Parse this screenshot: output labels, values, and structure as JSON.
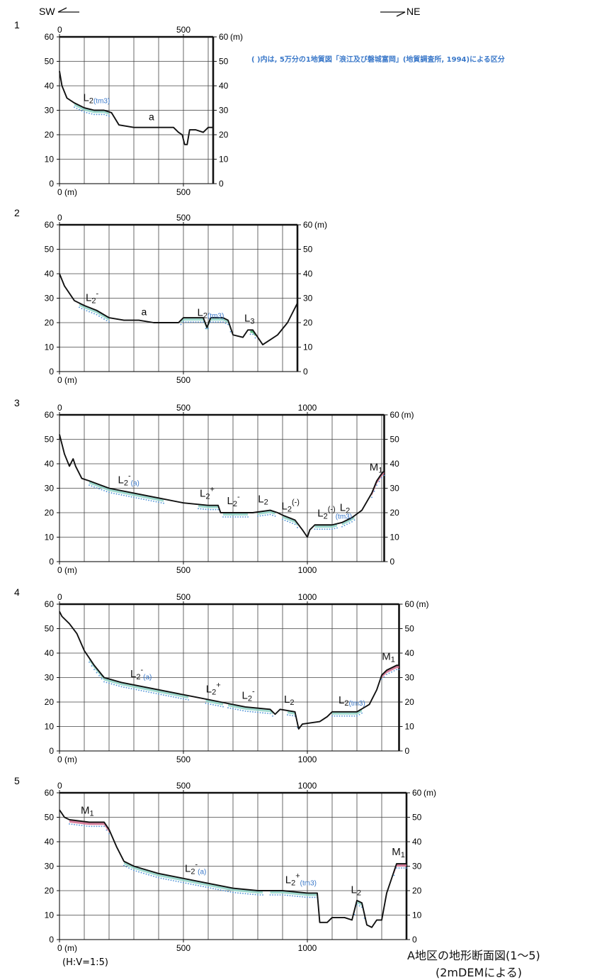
{
  "direction": {
    "left": "SW",
    "right": "NE"
  },
  "note": "( )内は, 5万分の1地質図「浪江及び磐城富岡」(地質調査所, 1994)による区分",
  "axis_unit_m": "(m)",
  "scale_note": "(H:V=1:5)",
  "caption": {
    "title": "A地区の地形断面図(1〜5)",
    "subtitle": "(2mDEMによる)"
  },
  "colors": {
    "profile": "#111111",
    "L2": "#8fd3c7",
    "L3": "#3aa46a",
    "M1": "#d06a8c",
    "note": "#3a78c9"
  },
  "chart_data": [
    {
      "panel_label": "1",
      "type": "line",
      "xlim": [
        0,
        620
      ],
      "ylim": [
        0,
        60
      ],
      "x_ticks": [
        0,
        500
      ],
      "y_ticks": [
        0,
        10,
        20,
        30,
        40,
        50,
        60
      ],
      "profile": [
        [
          0,
          46
        ],
        [
          10,
          40
        ],
        [
          30,
          35
        ],
        [
          60,
          33
        ],
        [
          100,
          31
        ],
        [
          140,
          30
        ],
        [
          180,
          30
        ],
        [
          210,
          29
        ],
        [
          240,
          24
        ],
        [
          300,
          23
        ],
        [
          350,
          23
        ],
        [
          400,
          23
        ],
        [
          430,
          23
        ],
        [
          460,
          23
        ],
        [
          480,
          21
        ],
        [
          495,
          20
        ],
        [
          505,
          16
        ],
        [
          515,
          16
        ],
        [
          525,
          22
        ],
        [
          550,
          22
        ],
        [
          580,
          21
        ],
        [
          600,
          23
        ],
        [
          620,
          23
        ]
      ],
      "terraces": [
        {
          "unit": "L2",
          "x": [
            60,
            200
          ],
          "label": "L2",
          "note": "(tm3)"
        }
      ],
      "labels": [
        {
          "text": "a",
          "x": 360,
          "y": 26
        }
      ]
    },
    {
      "panel_label": "2",
      "type": "line",
      "xlim": [
        0,
        960
      ],
      "ylim": [
        0,
        60
      ],
      "x_ticks": [
        0,
        500
      ],
      "y_ticks": [
        0,
        10,
        20,
        30,
        40,
        50,
        60
      ],
      "profile": [
        [
          0,
          40
        ],
        [
          20,
          35
        ],
        [
          60,
          29
        ],
        [
          100,
          27
        ],
        [
          150,
          25
        ],
        [
          200,
          22
        ],
        [
          260,
          21
        ],
        [
          320,
          21
        ],
        [
          380,
          20
        ],
        [
          440,
          20
        ],
        [
          480,
          20
        ],
        [
          500,
          22
        ],
        [
          540,
          22
        ],
        [
          580,
          22
        ],
        [
          595,
          18
        ],
        [
          610,
          22
        ],
        [
          660,
          22
        ],
        [
          680,
          21
        ],
        [
          700,
          15
        ],
        [
          740,
          14
        ],
        [
          760,
          17
        ],
        [
          780,
          17
        ],
        [
          800,
          14
        ],
        [
          820,
          11
        ],
        [
          850,
          13
        ],
        [
          880,
          15
        ],
        [
          920,
          20
        ],
        [
          945,
          25
        ],
        [
          960,
          28
        ]
      ],
      "terraces": [
        {
          "unit": "L2",
          "x": [
            80,
            200
          ],
          "label": "L2",
          "sup": "-",
          "note": ""
        },
        {
          "unit": "L2",
          "x": [
            490,
            690
          ],
          "label": "L2",
          "note": "(tm3)"
        },
        {
          "unit": "L3",
          "x": [
            770,
            790
          ],
          "label": "L3",
          "note": ""
        }
      ],
      "labels": [
        {
          "text": "a",
          "x": 330,
          "y": 23
        }
      ]
    },
    {
      "panel_label": "3",
      "type": "line",
      "xlim": [
        0,
        1310
      ],
      "ylim": [
        0,
        60
      ],
      "x_ticks": [
        0,
        500,
        1000
      ],
      "y_ticks": [
        0,
        10,
        20,
        30,
        40,
        50,
        60
      ],
      "profile": [
        [
          0,
          52
        ],
        [
          20,
          44
        ],
        [
          40,
          39
        ],
        [
          55,
          42
        ],
        [
          65,
          39
        ],
        [
          90,
          34
        ],
        [
          120,
          33
        ],
        [
          200,
          30
        ],
        [
          300,
          28
        ],
        [
          400,
          26
        ],
        [
          500,
          24
        ],
        [
          600,
          23
        ],
        [
          640,
          23
        ],
        [
          650,
          20
        ],
        [
          700,
          20
        ],
        [
          780,
          20
        ],
        [
          850,
          21
        ],
        [
          880,
          20
        ],
        [
          900,
          19
        ],
        [
          950,
          17
        ],
        [
          980,
          13
        ],
        [
          1000,
          10
        ],
        [
          1010,
          13
        ],
        [
          1030,
          15
        ],
        [
          1100,
          15
        ],
        [
          1140,
          16
        ],
        [
          1180,
          18
        ],
        [
          1220,
          21
        ],
        [
          1260,
          28
        ],
        [
          1280,
          33
        ],
        [
          1300,
          36
        ],
        [
          1310,
          37
        ]
      ],
      "terraces": [
        {
          "unit": "L2",
          "x": [
            120,
            420
          ],
          "label": "L2",
          "sup": "-",
          "note": "(a)"
        },
        {
          "unit": "L2",
          "x": [
            560,
            640
          ],
          "label": "L2",
          "sup": "+",
          "note": ""
        },
        {
          "unit": "L2",
          "x": [
            660,
            760
          ],
          "label": "L2",
          "sup": "-",
          "note": ""
        },
        {
          "unit": "L2",
          "x": [
            800,
            870
          ],
          "label": "L2",
          "note": ""
        },
        {
          "unit": "L2",
          "x": [
            900,
            960
          ],
          "label": "L2",
          "sup": "(-)",
          "note": ""
        },
        {
          "unit": "L2",
          "x": [
            1030,
            1120
          ],
          "label": "L2",
          "sup": "(-)",
          "note": "(tm3)"
        },
        {
          "unit": "L2",
          "x": [
            1140,
            1190
          ],
          "label": "L2",
          "note": ""
        },
        {
          "unit": "M1",
          "x": [
            1260,
            1310
          ],
          "label": "M1",
          "note": ""
        }
      ],
      "labels": []
    },
    {
      "panel_label": "4",
      "type": "line",
      "xlim": [
        0,
        1370
      ],
      "ylim": [
        0,
        60
      ],
      "x_ticks": [
        0,
        500,
        1000
      ],
      "y_ticks": [
        0,
        10,
        20,
        30,
        40,
        50,
        60
      ],
      "profile": [
        [
          0,
          57
        ],
        [
          10,
          55
        ],
        [
          40,
          52
        ],
        [
          70,
          48
        ],
        [
          100,
          41
        ],
        [
          140,
          35
        ],
        [
          180,
          30
        ],
        [
          250,
          28
        ],
        [
          350,
          26
        ],
        [
          450,
          24
        ],
        [
          550,
          22
        ],
        [
          650,
          20
        ],
        [
          750,
          18
        ],
        [
          850,
          17
        ],
        [
          870,
          15
        ],
        [
          890,
          17
        ],
        [
          950,
          16
        ],
        [
          965,
          9
        ],
        [
          980,
          11
        ],
        [
          1050,
          12
        ],
        [
          1080,
          14
        ],
        [
          1100,
          16
        ],
        [
          1200,
          16
        ],
        [
          1250,
          19
        ],
        [
          1280,
          25
        ],
        [
          1300,
          31
        ],
        [
          1320,
          33
        ],
        [
          1360,
          35
        ],
        [
          1370,
          35
        ]
      ],
      "terraces": [
        {
          "unit": "L2",
          "x": [
            120,
            520
          ],
          "label": "L2",
          "sup": "-",
          "note": "(a)"
        },
        {
          "unit": "L2",
          "x": [
            590,
            660
          ],
          "label": "L2",
          "sup": "+",
          "note": ""
        },
        {
          "unit": "L2",
          "x": [
            680,
            860
          ],
          "label": "L2",
          "sup": "-",
          "note": ""
        },
        {
          "unit": "L2",
          "x": [
            920,
            960
          ],
          "label": "L2",
          "note": ""
        },
        {
          "unit": "L2",
          "x": [
            1100,
            1220
          ],
          "label": "L2",
          "note": "(tm3)"
        },
        {
          "unit": "M1",
          "x": [
            1300,
            1370
          ],
          "label": "M1",
          "note": ""
        }
      ],
      "labels": []
    },
    {
      "panel_label": "5",
      "type": "line",
      "xlim": [
        0,
        1400
      ],
      "ylim": [
        0,
        60
      ],
      "x_ticks": [
        0,
        500,
        1000
      ],
      "y_ticks": [
        0,
        10,
        20,
        30,
        40,
        50,
        60
      ],
      "profile": [
        [
          0,
          53
        ],
        [
          20,
          50
        ],
        [
          40,
          49
        ],
        [
          120,
          48
        ],
        [
          180,
          48
        ],
        [
          200,
          45
        ],
        [
          230,
          38
        ],
        [
          260,
          32
        ],
        [
          300,
          30
        ],
        [
          400,
          27
        ],
        [
          500,
          25
        ],
        [
          600,
          23
        ],
        [
          700,
          21
        ],
        [
          800,
          20
        ],
        [
          900,
          20
        ],
        [
          1000,
          19
        ],
        [
          1040,
          19
        ],
        [
          1050,
          7
        ],
        [
          1080,
          7
        ],
        [
          1100,
          9
        ],
        [
          1150,
          9
        ],
        [
          1180,
          8
        ],
        [
          1200,
          16
        ],
        [
          1220,
          15
        ],
        [
          1240,
          6
        ],
        [
          1260,
          5
        ],
        [
          1280,
          8
        ],
        [
          1300,
          8
        ],
        [
          1320,
          19
        ],
        [
          1340,
          25
        ],
        [
          1360,
          31
        ],
        [
          1400,
          31
        ]
      ],
      "terraces": [
        {
          "unit": "M1",
          "x": [
            40,
            200
          ],
          "label": "M1",
          "note": ""
        },
        {
          "unit": "L2",
          "x": [
            260,
            820
          ],
          "label": "L2",
          "sup": "-",
          "note": "(a)"
        },
        {
          "unit": "L2",
          "x": [
            850,
            1040
          ],
          "label": "L2",
          "sup": "+",
          "note": "(tm3)"
        },
        {
          "unit": "L2",
          "x": [
            1190,
            1230
          ],
          "label": "L2",
          "note": ""
        },
        {
          "unit": "M1",
          "x": [
            1350,
            1400
          ],
          "label": "M1",
          "note": ""
        }
      ],
      "labels": []
    }
  ]
}
